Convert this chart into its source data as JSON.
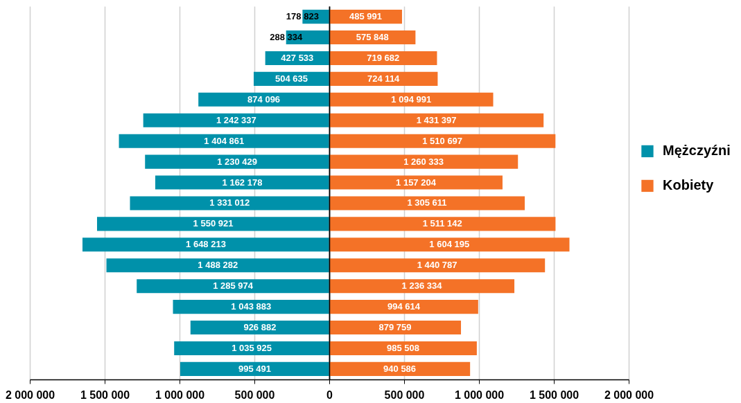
{
  "chart_data": [
    {
      "type": "bar",
      "orientation": "horizontal",
      "categories": [
        null,
        null,
        null,
        null,
        null,
        null,
        null,
        null,
        null,
        null,
        null,
        null,
        null,
        null,
        null,
        null,
        null,
        null
      ],
      "series": [
        {
          "name": "Mężczyźni",
          "color": "#0091aa",
          "values": [
            178823,
            288334,
            427533,
            504635,
            874096,
            1242337,
            1404861,
            1230429,
            1162178,
            1331012,
            1550921,
            1648213,
            1488282,
            1285974,
            1043883,
            926882,
            1035925,
            995491
          ],
          "value_labels": [
            "178 823",
            "288 334",
            "427 533",
            "504 635",
            "874 096",
            "1 242 337",
            "1 404 861",
            "1 230 429",
            "1 162 178",
            "1 331 012",
            "1 550 921",
            "1 648 213",
            "1 488 282",
            "1 285 974",
            "1 043 883",
            "926 882",
            "1 035 925",
            "995 491"
          ]
        }
      ],
      "xlim": [
        2000000,
        0
      ],
      "xticks": [
        {
          "value": 2000000,
          "label": "2 000 000"
        },
        {
          "value": 1500000,
          "label": "1 500 000"
        },
        {
          "value": 1000000,
          "label": "1 000 000"
        },
        {
          "value": 500000,
          "label": "500 000"
        },
        {
          "value": 0,
          "label": null
        }
      ],
      "grid": "x"
    },
    {
      "type": "bar",
      "orientation": "horizontal",
      "categories": [
        null,
        null,
        null,
        null,
        null,
        null,
        null,
        null,
        null,
        null,
        null,
        null,
        null,
        null,
        null,
        null,
        null,
        null
      ],
      "series": [
        {
          "name": "Kobiety",
          "color": "#f47227",
          "values": [
            485991,
            575848,
            719682,
            724114,
            1094991,
            1431397,
            1510697,
            1260333,
            1157204,
            1305611,
            1511142,
            1604195,
            1440787,
            1236334,
            994614,
            879759,
            985508,
            940586
          ],
          "value_labels": [
            "485 991",
            "575 848",
            "719 682",
            "724 114",
            "1 094 991",
            "1 431 397",
            "1 510 697",
            "1 260 333",
            "1 157 204",
            "1 305 611",
            "1 511 142",
            "1 604 195",
            "1 440 787",
            "1 236 334",
            "994 614",
            "879 759",
            "985 508",
            "940 586"
          ]
        }
      ],
      "xlim": [
        0,
        2000000
      ],
      "xticks": [
        0,
        {
          "value": 500000,
          "label": "500 000"
        },
        {
          "value": 1000000,
          "label": "1 000 000"
        },
        {
          "value": 1500000,
          "label": "1 500 000"
        },
        {
          "value": 2000000,
          "label": "2 000 000"
        }
      ],
      "grid": "x",
      "legend": "right"
    }
  ]
}
